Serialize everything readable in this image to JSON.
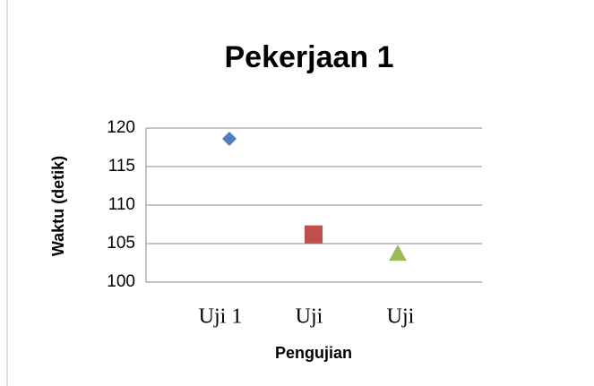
{
  "chart_data": {
    "type": "scatter",
    "title": "Pekerjaan 1",
    "x_label": "Pengujian",
    "y_label": "Waktu (detik)",
    "categories": [
      "Uji 1",
      "Uji",
      "Uji"
    ],
    "values": [
      118.6,
      106.2,
      103.7
    ],
    "colors": [
      "#4f81bd",
      "#c0504d",
      "#9bbb59"
    ],
    "markers": [
      "diamond",
      "square",
      "triangle"
    ],
    "ylim": [
      100,
      120
    ],
    "yticks": [
      100,
      105,
      110,
      115,
      120
    ],
    "grid": true
  }
}
